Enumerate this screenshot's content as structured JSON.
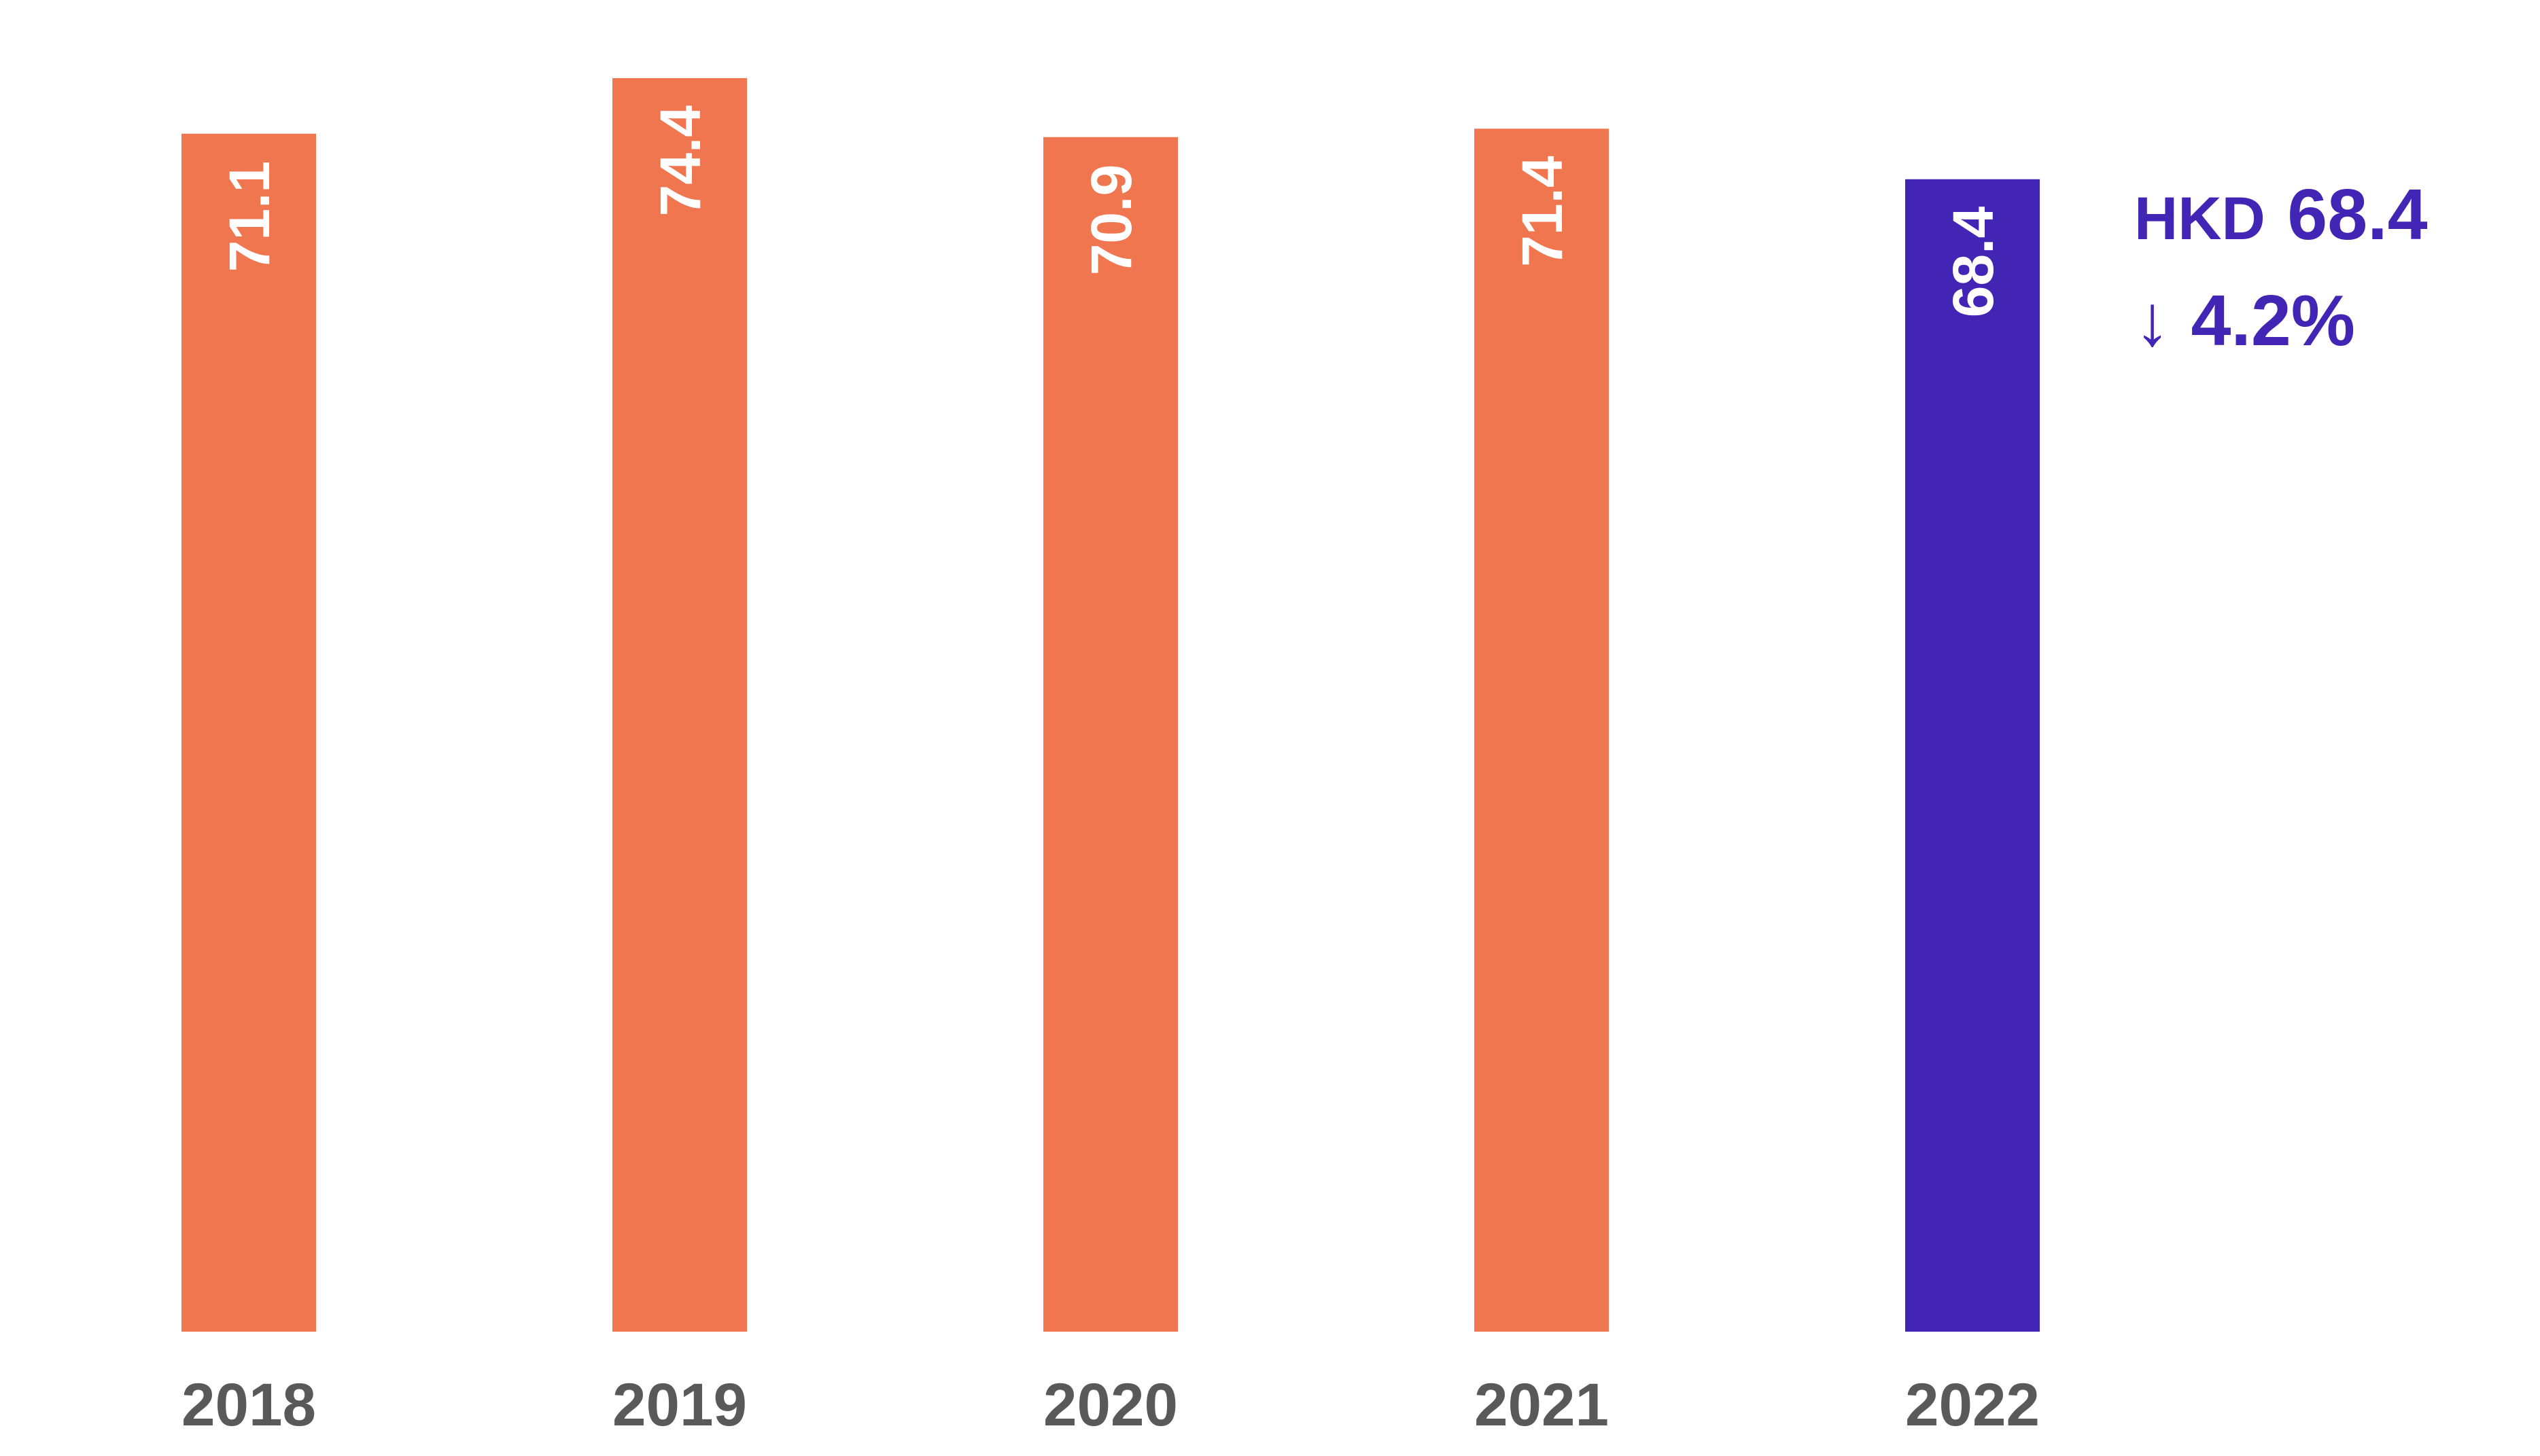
{
  "chart_data": {
    "type": "bar",
    "categories": [
      "2018",
      "2019",
      "2020",
      "2021",
      "2022"
    ],
    "values": [
      71.1,
      74.4,
      70.9,
      71.4,
      68.4
    ],
    "value_labels": [
      "71.1",
      "74.4",
      "70.9",
      "71.4",
      "68.4"
    ],
    "ylim": [
      0,
      74.4
    ],
    "grid": false,
    "legend": "none",
    "colors": {
      "bar_default": "#F07650",
      "bar_highlight": "#4325B5",
      "value_label": "#FFFFFF",
      "tick_label": "#595959",
      "callout": "#4325B5"
    },
    "highlight_index": 4,
    "callout": {
      "currency": "HKD",
      "value": "68.4",
      "change": "4.2%",
      "direction_icon": "arrow-down-icon",
      "direction_glyph": "↓"
    }
  }
}
